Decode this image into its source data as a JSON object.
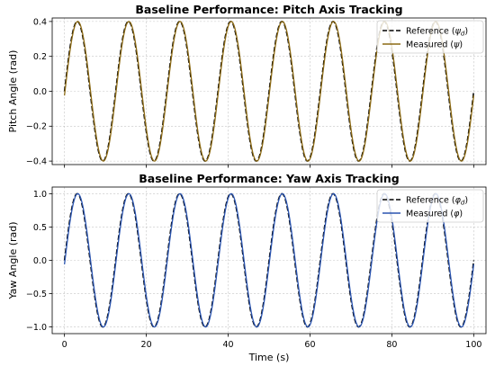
{
  "chart_data": [
    {
      "type": "line",
      "title": "Baseline Performance: Pitch Axis Tracking",
      "xlabel": "",
      "ylabel": "Pitch Angle (rad)",
      "xlim": [
        -3,
        103
      ],
      "ylim": [
        -0.42,
        0.42
      ],
      "xticks": [
        0,
        20,
        40,
        60,
        80,
        100
      ],
      "yticks": [
        -0.4,
        -0.2,
        0.0,
        0.2,
        0.4
      ],
      "ytick_labels": [
        "−0.4",
        "−0.2",
        "0.0",
        "0.2",
        "0.4"
      ],
      "show_x_tick_labels": false,
      "grid": true,
      "legend_position": "top-right",
      "x": [
        0,
        100
      ],
      "series": [
        {
          "name": "Reference (ψ_d)",
          "legend_text": "Reference (",
          "legend_symbol": "ψ",
          "legend_sub": "d",
          "style": "dashed",
          "color": "#000000",
          "amplitude": 0.4,
          "period": 12.5,
          "phase": 0,
          "offset": 0
        },
        {
          "name": "Measured (ψ)",
          "legend_text": "Measured (",
          "legend_symbol": "ψ",
          "legend_sub": "",
          "style": "solid",
          "color": "#8c6a14",
          "amplitude": 0.4,
          "period": 12.5,
          "phase": 0.12,
          "offset": 0
        }
      ]
    },
    {
      "type": "line",
      "title": "Baseline Performance: Yaw Axis Tracking",
      "xlabel": "Time (s)",
      "ylabel": "Yaw Angle (rad)",
      "xlim": [
        -3,
        103
      ],
      "ylim": [
        -1.1,
        1.1
      ],
      "xticks": [
        0,
        20,
        40,
        60,
        80,
        100
      ],
      "yticks": [
        -1.0,
        -0.5,
        0.0,
        0.5,
        1.0
      ],
      "ytick_labels": [
        "−1.0",
        "−0.5",
        "0.0",
        "0.5",
        "1.0"
      ],
      "show_x_tick_labels": true,
      "grid": true,
      "legend_position": "top-right",
      "x": [
        0,
        100
      ],
      "series": [
        {
          "name": "Reference (φ_d)",
          "legend_text": "Reference (",
          "legend_symbol": "φ",
          "legend_sub": "d",
          "style": "dashed",
          "color": "#000000",
          "amplitude": 1.0,
          "period": 12.5,
          "phase": 0,
          "offset": 0
        },
        {
          "name": "Measured (φ)",
          "legend_text": "Measured (",
          "legend_symbol": "φ",
          "legend_sub": "",
          "style": "solid",
          "color": "#2a54b0",
          "amplitude": 1.0,
          "period": 12.5,
          "phase": 0.12,
          "offset": 0
        }
      ]
    }
  ]
}
